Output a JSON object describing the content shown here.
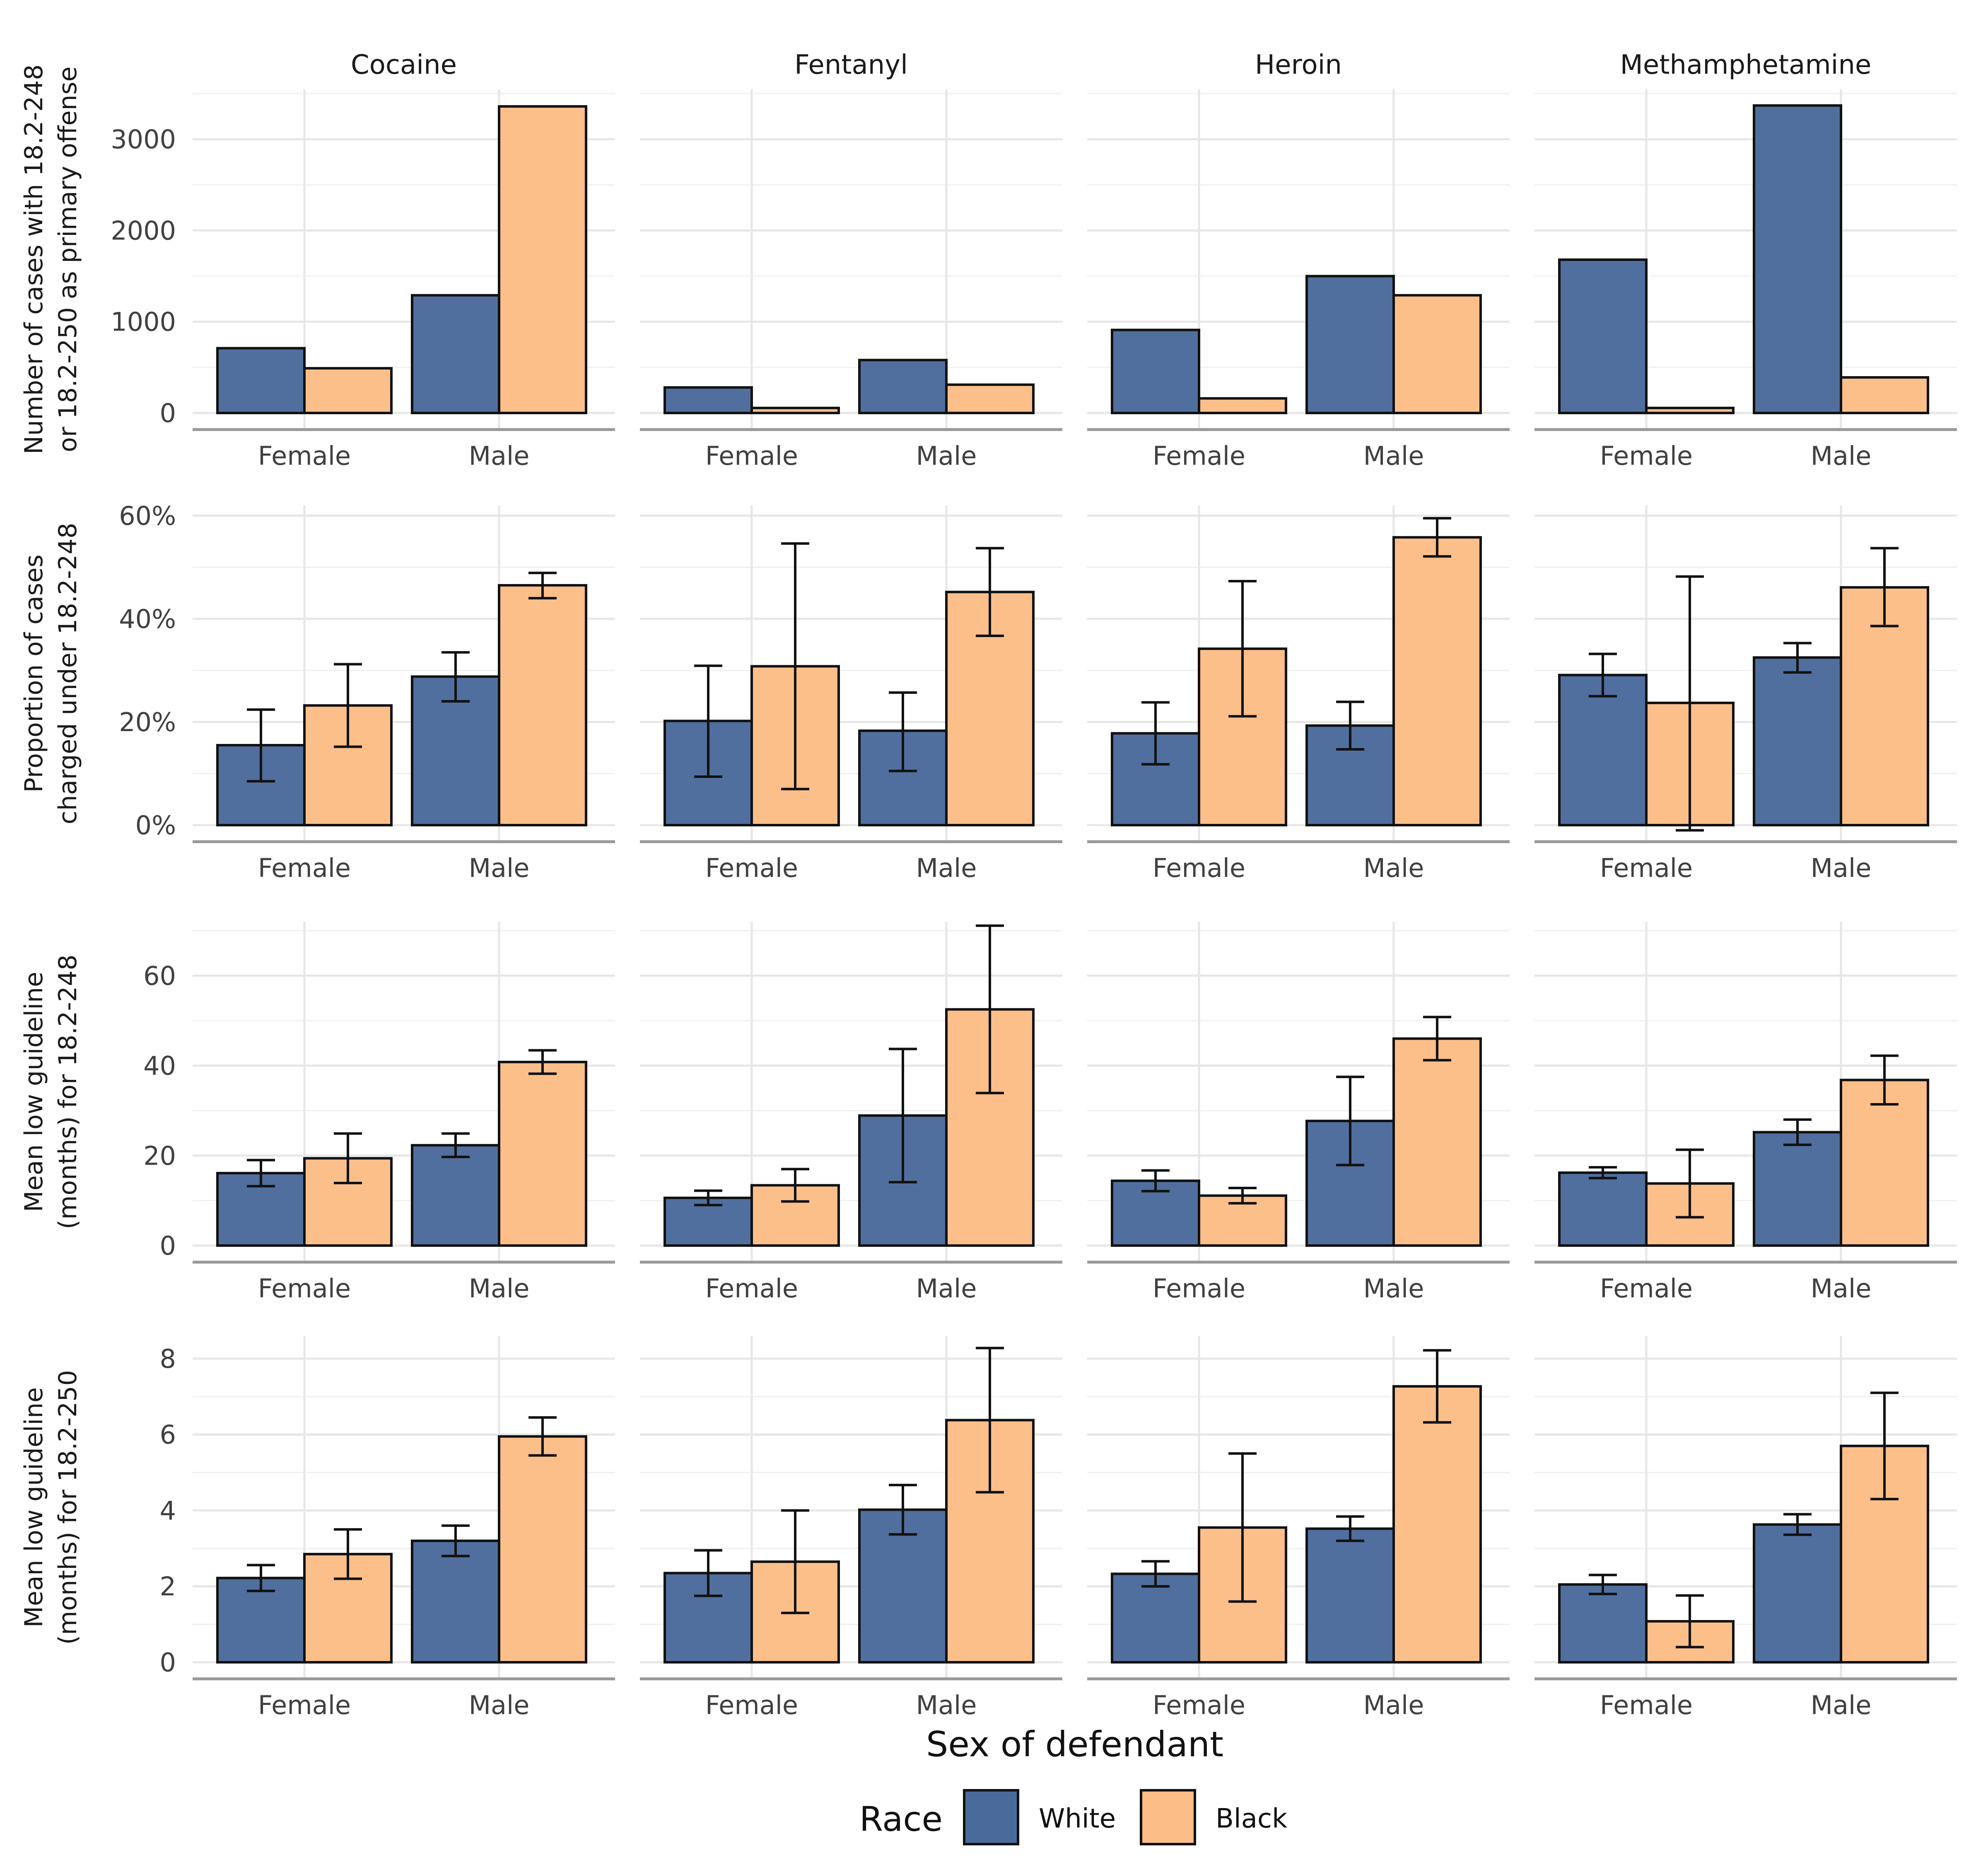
{
  "colors": {
    "white_race": "#4a6a9b",
    "black_race": "#fcbd86",
    "grid": "#e6e6e6",
    "axis": "#999999"
  },
  "chart_data": {
    "type": "bar",
    "xlabel": "Sex of defendant",
    "legend": {
      "title": "Race",
      "position": "bottom",
      "entries": [
        "White",
        "Black"
      ]
    },
    "columns": [
      "Cocaine",
      "Fentanyl",
      "Heroin",
      "Methamphetamine"
    ],
    "categories": [
      "Female",
      "Male"
    ],
    "rows": [
      {
        "ylabel": [
          "Number of cases with 18.2-248",
          "or 18.2-250 as primary offense"
        ],
        "ylim": [
          0,
          3550
        ],
        "ticks": [
          0,
          1000,
          2000,
          3000
        ],
        "tick_labels": [
          "0",
          "1000",
          "2000",
          "3000"
        ],
        "panels": [
          {
            "series": [
              {
                "name": "White",
                "values": [
                  710,
                  1290
                ]
              },
              {
                "name": "Black",
                "values": [
                  490,
                  3360
                ]
              }
            ]
          },
          {
            "series": [
              {
                "name": "White",
                "values": [
                  280,
                  580
                ]
              },
              {
                "name": "Black",
                "values": [
                  55,
                  310
                ]
              }
            ]
          },
          {
            "series": [
              {
                "name": "White",
                "values": [
                  910,
                  1500
                ]
              },
              {
                "name": "Black",
                "values": [
                  160,
                  1290
                ]
              }
            ]
          },
          {
            "series": [
              {
                "name": "White",
                "values": [
                  1680,
                  3370
                ]
              },
              {
                "name": "Black",
                "values": [
                  55,
                  390
                ]
              }
            ]
          }
        ]
      },
      {
        "ylabel": [
          "Proportion of cases",
          "charged under 18.2-248"
        ],
        "ylim": [
          0,
          62
        ],
        "ticks": [
          0,
          20,
          40,
          60
        ],
        "tick_labels": [
          "0%",
          "20%",
          "40%",
          "60%"
        ],
        "panels": [
          {
            "series": [
              {
                "name": "White",
                "values": [
                  15.5,
                  28.8
                ],
                "errors": [
                  [
                    8.5,
                    22.4
                  ],
                  [
                    24,
                    33.5
                  ]
                ]
              },
              {
                "name": "Black",
                "values": [
                  23.2,
                  46.5
                ],
                "errors": [
                  [
                    15.2,
                    31.2
                  ],
                  [
                    44,
                    48.9
                  ]
                ]
              }
            ]
          },
          {
            "series": [
              {
                "name": "White",
                "values": [
                  20.2,
                  18.3
                ],
                "errors": [
                  [
                    9.4,
                    30.9
                  ],
                  [
                    10.5,
                    25.7
                  ]
                ]
              },
              {
                "name": "Black",
                "values": [
                  30.8,
                  45.2
                ],
                "errors": [
                  [
                    7,
                    54.6
                  ],
                  [
                    36.7,
                    53.7
                  ]
                ]
              }
            ]
          },
          {
            "series": [
              {
                "name": "White",
                "values": [
                  17.8,
                  19.3
                ],
                "errors": [
                  [
                    11.8,
                    23.8
                  ],
                  [
                    14.7,
                    23.9
                  ]
                ]
              },
              {
                "name": "Black",
                "values": [
                  34.2,
                  55.8
                ],
                "errors": [
                  [
                    21.1,
                    47.3
                  ],
                  [
                    52.1,
                    59.5
                  ]
                ]
              }
            ]
          },
          {
            "series": [
              {
                "name": "White",
                "values": [
                  29.1,
                  32.5
                ],
                "errors": [
                  [
                    25,
                    33.2
                  ],
                  [
                    29.6,
                    35.3
                  ]
                ]
              },
              {
                "name": "Black",
                "values": [
                  23.7,
                  46.1
                ],
                "errors": [
                  [
                    -1,
                    48.2
                  ],
                  [
                    38.6,
                    53.7
                  ]
                ]
              }
            ]
          }
        ]
      },
      {
        "ylabel": [
          "Mean low guideline",
          "(months) for 18.2-248"
        ],
        "ylim": [
          0,
          72
        ],
        "ticks": [
          0,
          20,
          40,
          60
        ],
        "tick_labels": [
          "0",
          "20",
          "40",
          "60"
        ],
        "panels": [
          {
            "series": [
              {
                "name": "White",
                "values": [
                  16.1,
                  22.3
                ],
                "errors": [
                  [
                    13.2,
                    19
                  ],
                  [
                    19.7,
                    24.9
                  ]
                ]
              },
              {
                "name": "Black",
                "values": [
                  19.4,
                  40.8
                ],
                "errors": [
                  [
                    13.9,
                    24.9
                  ],
                  [
                    38.2,
                    43.4
                  ]
                ]
              }
            ]
          },
          {
            "series": [
              {
                "name": "White",
                "values": [
                  10.6,
                  28.9
                ],
                "errors": [
                  [
                    9,
                    12.2
                  ],
                  [
                    14.1,
                    43.7
                  ]
                ]
              },
              {
                "name": "Black",
                "values": [
                  13.4,
                  52.5
                ],
                "errors": [
                  [
                    9.8,
                    17
                  ],
                  [
                    33.9,
                    71.1
                  ]
                ]
              }
            ]
          },
          {
            "series": [
              {
                "name": "White",
                "values": [
                  14.4,
                  27.7
                ],
                "errors": [
                  [
                    12.1,
                    16.7
                  ],
                  [
                    17.9,
                    37.5
                  ]
                ]
              },
              {
                "name": "Black",
                "values": [
                  11.1,
                  46
                ],
                "errors": [
                  [
                    9.4,
                    12.8
                  ],
                  [
                    41.2,
                    50.8
                  ]
                ]
              }
            ]
          },
          {
            "series": [
              {
                "name": "White",
                "values": [
                  16.2,
                  25.2
                ],
                "errors": [
                  [
                    15,
                    17.4
                  ],
                  [
                    22.4,
                    28
                  ]
                ]
              },
              {
                "name": "Black",
                "values": [
                  13.8,
                  36.8
                ],
                "errors": [
                  [
                    6.3,
                    21.3
                  ],
                  [
                    31.4,
                    42.2
                  ]
                ]
              }
            ]
          }
        ]
      },
      {
        "ylabel": [
          "Mean low guideline",
          "(months) for 18.2-250"
        ],
        "ylim": [
          0,
          8.6
        ],
        "ticks": [
          0,
          2,
          4,
          6,
          8
        ],
        "tick_labels": [
          "0",
          "2",
          "4",
          "6",
          "8"
        ],
        "panels": [
          {
            "series": [
              {
                "name": "White",
                "values": [
                  2.22,
                  3.2
                ],
                "errors": [
                  [
                    1.88,
                    2.56
                  ],
                  [
                    2.8,
                    3.6
                  ]
                ]
              },
              {
                "name": "Black",
                "values": [
                  2.85,
                  5.95
                ],
                "errors": [
                  [
                    2.2,
                    3.5
                  ],
                  [
                    5.45,
                    6.45
                  ]
                ]
              }
            ]
          },
          {
            "series": [
              {
                "name": "White",
                "values": [
                  2.35,
                  4.02
                ],
                "errors": [
                  [
                    1.75,
                    2.95
                  ],
                  [
                    3.37,
                    4.67
                  ]
                ]
              },
              {
                "name": "Black",
                "values": [
                  2.65,
                  6.38
                ],
                "errors": [
                  [
                    1.3,
                    4
                  ],
                  [
                    4.48,
                    8.28
                  ]
                ]
              }
            ]
          },
          {
            "series": [
              {
                "name": "White",
                "values": [
                  2.33,
                  3.52
                ],
                "errors": [
                  [
                    2,
                    2.66
                  ],
                  [
                    3.2,
                    3.84
                  ]
                ]
              },
              {
                "name": "Black",
                "values": [
                  3.55,
                  7.27
                ],
                "errors": [
                  [
                    1.6,
                    5.5
                  ],
                  [
                    6.32,
                    8.22
                  ]
                ]
              }
            ]
          },
          {
            "series": [
              {
                "name": "White",
                "values": [
                  2.05,
                  3.63
                ],
                "errors": [
                  [
                    1.8,
                    2.3
                  ],
                  [
                    3.36,
                    3.9
                  ]
                ]
              },
              {
                "name": "Black",
                "values": [
                  1.08,
                  5.7
                ],
                "errors": [
                  [
                    0.4,
                    1.76
                  ],
                  [
                    4.3,
                    7.1
                  ]
                ]
              }
            ]
          }
        ]
      }
    ]
  }
}
